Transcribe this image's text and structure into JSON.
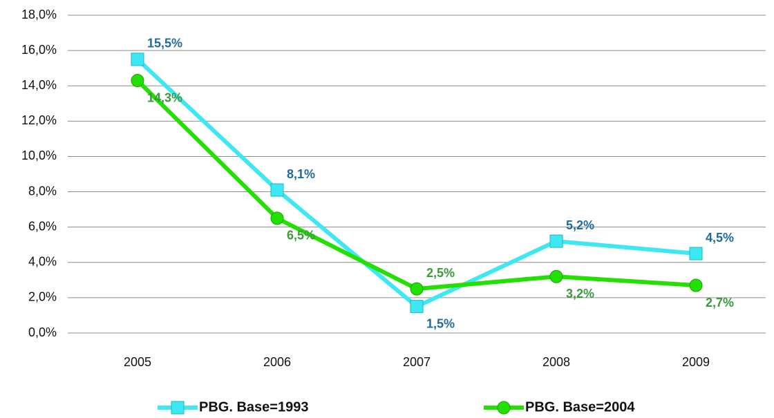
{
  "chart_data": {
    "type": "line",
    "categories": [
      "2005",
      "2006",
      "2007",
      "2008",
      "2009"
    ],
    "series": [
      {
        "name": "PBG. Base=1993",
        "color": "#3ee8f2",
        "marker": "square",
        "label_color": "#1f6b9c",
        "values": [
          15.5,
          8.1,
          1.5,
          5.2,
          4.5
        ],
        "value_labels": [
          "15,5%",
          "8,1%",
          "1,5%",
          "5,2%",
          "4,5%"
        ]
      },
      {
        "name": "PBG. Base=2004",
        "color": "#22e000",
        "marker": "circle",
        "label_color": "#3a9a3a",
        "values": [
          14.3,
          6.5,
          2.5,
          3.2,
          2.7
        ],
        "value_labels": [
          "14,3%",
          "6,5%",
          "2,5%",
          "3,2%",
          "2,7%"
        ]
      }
    ],
    "ylim": [
      0,
      18
    ],
    "yticks": [
      {
        "value": 0,
        "label": "0,0%"
      },
      {
        "value": 2,
        "label": "2,0%"
      },
      {
        "value": 4,
        "label": "4,0%"
      },
      {
        "value": 6,
        "label": "6,0%"
      },
      {
        "value": 8,
        "label": "8,0%"
      },
      {
        "value": 10,
        "label": "10,0%"
      },
      {
        "value": 12,
        "label": "12,0%"
      },
      {
        "value": 14,
        "label": "14,0%"
      },
      {
        "value": 16,
        "label": "16,0%"
      },
      {
        "value": 18,
        "label": "18,0%"
      }
    ],
    "grid": true,
    "legend": "bottom"
  }
}
